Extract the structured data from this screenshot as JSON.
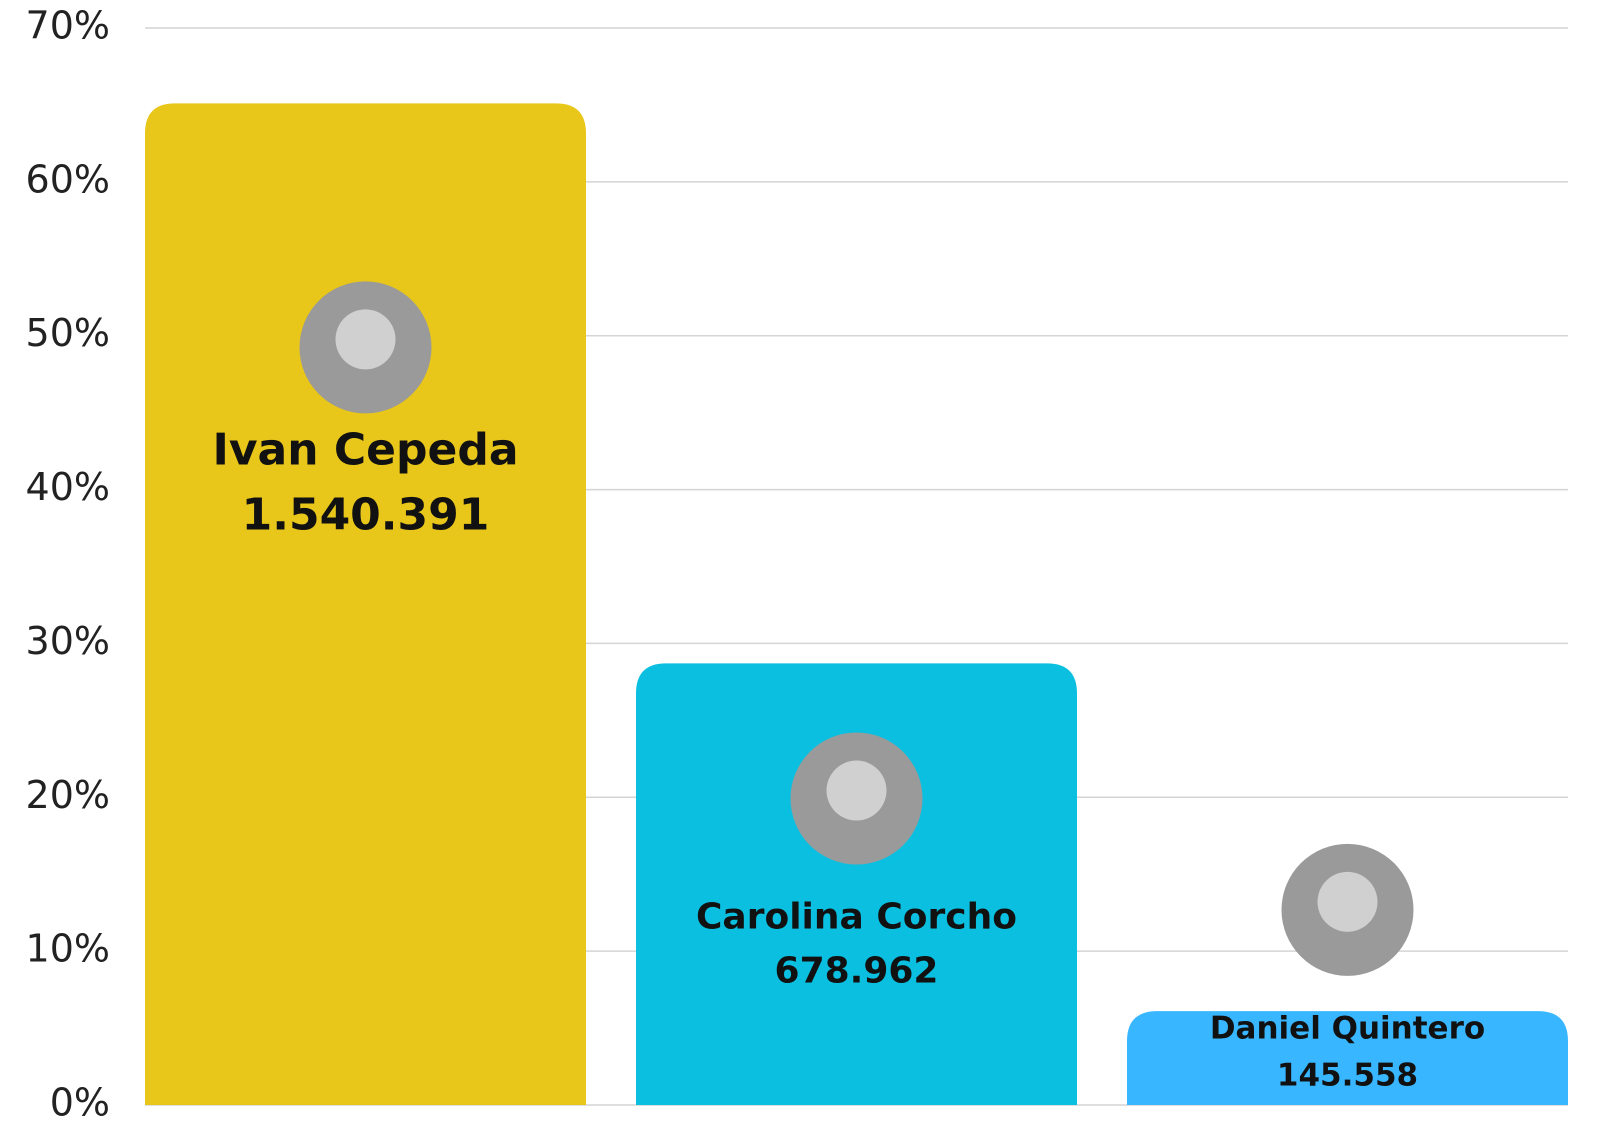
{
  "chart_data": {
    "type": "bar",
    "categories": [
      "Ivan Cepeda",
      "Carolina Corcho",
      "Daniel Quintero"
    ],
    "values": [
      65.1,
      28.7,
      6.1
    ],
    "vote_labels": [
      "1.540.391",
      "678.962",
      "145.558"
    ],
    "colors": [
      "#e8c61a",
      "#0bbfe0",
      "#38b6ff"
    ],
    "ylim": [
      0,
      70
    ],
    "yticks": [
      {
        "value": 0,
        "label": "0%"
      },
      {
        "value": 10,
        "label": "10%"
      },
      {
        "value": 20,
        "label": "20%"
      },
      {
        "value": 30,
        "label": "30%"
      },
      {
        "value": 40,
        "label": "40%"
      },
      {
        "value": 50,
        "label": "50%"
      },
      {
        "value": 60,
        "label": "60%"
      },
      {
        "value": 70,
        "label": "70%"
      }
    ],
    "grid": true
  }
}
